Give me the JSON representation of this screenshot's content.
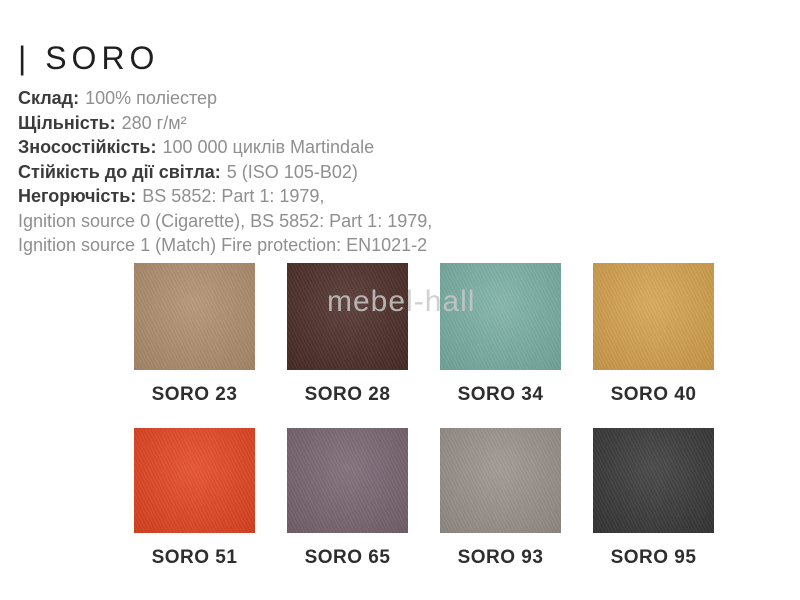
{
  "header": {
    "title": "| SORO"
  },
  "specs": {
    "lines": [
      {
        "label": "Склад:",
        "value": "100% поліестер"
      },
      {
        "label": "Щільність:",
        "value": "280 г/м²"
      },
      {
        "label": "Зносостійкість:",
        "value": "100 000 циклів Martindale"
      },
      {
        "label": "Стійкість до дії світла:",
        "value": "5 (ISO 105-B02)"
      },
      {
        "label": "Негорючість:",
        "value": "BS 5852: Part 1: 1979,"
      },
      {
        "label": "",
        "value": "Ignition source 0 (Cigarette), BS 5852: Part 1: 1979,"
      },
      {
        "label": "",
        "value": "Ignition source 1 (Match) Fire protection: EN1021-2"
      }
    ]
  },
  "watermark": {
    "text": "mebel-hall",
    "color": "#c8c8c8"
  },
  "swatches": [
    {
      "label": "SORO 23",
      "color": "#b28f6e"
    },
    {
      "label": "SORO 28",
      "color": "#4a2a25"
    },
    {
      "label": "SORO 34",
      "color": "#79b1a6"
    },
    {
      "label": "SORO 40",
      "color": "#d8a34c"
    },
    {
      "label": "SORO 51",
      "color": "#e7431e"
    },
    {
      "label": "SORO 65",
      "color": "#786370"
    },
    {
      "label": "SORO 93",
      "color": "#9b928b"
    },
    {
      "label": "SORO 95",
      "color": "#363636"
    }
  ]
}
